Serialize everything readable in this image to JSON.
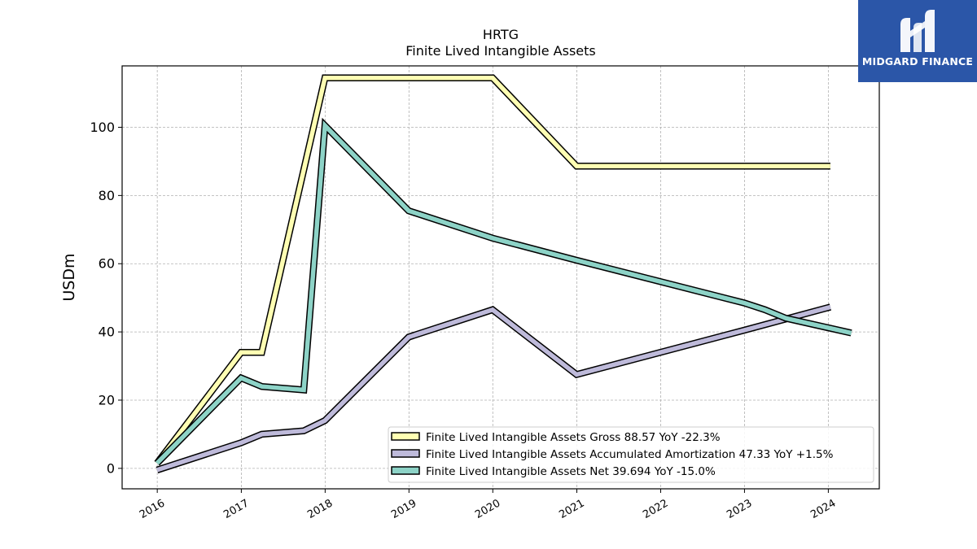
{
  "brand": {
    "name": "MIDGARD FINANCE",
    "logo_icon": "midgard-m-icon",
    "bg_color": "#2b56a8"
  },
  "chart_data": {
    "type": "line",
    "title": "HRTG",
    "subtitle": "Finite Lived Intangible Assets",
    "xlabel": "",
    "ylabel": "USDm",
    "x_ticks": [
      "2016",
      "2017",
      "2018",
      "2019",
      "2020",
      "2021",
      "2022",
      "2023",
      "2024"
    ],
    "y_ticks": [
      0,
      20,
      40,
      60,
      80,
      100
    ],
    "xlim": [
      "2015-08-01",
      "2024-08-10"
    ],
    "ylim": [
      -6,
      118
    ],
    "grid": true,
    "legend_position": "lower-right",
    "series": [
      {
        "name": "Finite Lived Intangible Assets Gross",
        "legend_label": "Finite Lived Intangible Assets Gross  88.57 YoY -22.3%",
        "color": "#ffffb3",
        "points": [
          [
            "2015-12-31",
            1.5
          ],
          [
            "2016-12-31",
            34
          ],
          [
            "2017-03-31",
            34
          ],
          [
            "2017-12-31",
            114.5
          ],
          [
            "2019-12-31",
            114.5
          ],
          [
            "2020-12-31",
            88.6
          ],
          [
            "2024-01-10",
            88.6
          ]
        ]
      },
      {
        "name": "Finite Lived Intangible Assets Accumulated Amortization",
        "legend_label": "Finite Lived Intangible Assets Accumulated Amortization  47.33 YoY +1.5%",
        "color": "#bebada",
        "points": [
          [
            "2015-12-31",
            -0.5
          ],
          [
            "2016-12-31",
            7.5
          ],
          [
            "2017-03-31",
            10
          ],
          [
            "2017-09-30",
            11
          ],
          [
            "2017-12-31",
            14
          ],
          [
            "2018-12-31",
            38.5
          ],
          [
            "2019-12-31",
            46.5
          ],
          [
            "2020-12-31",
            27.5
          ],
          [
            "2022-12-31",
            40.5
          ],
          [
            "2024-01-10",
            47.3
          ]
        ]
      },
      {
        "name": "Finite Lived Intangible Assets Net",
        "legend_label": "Finite Lived Intangible Assets Net  39.694 YoY -15.0%",
        "color": "#8dd3c7",
        "points": [
          [
            "2015-12-31",
            1.5
          ],
          [
            "2016-12-31",
            26.5
          ],
          [
            "2017-03-31",
            24
          ],
          [
            "2017-09-30",
            23
          ],
          [
            "2017-12-31",
            100.5
          ],
          [
            "2018-12-31",
            75.5
          ],
          [
            "2019-12-31",
            67.5
          ],
          [
            "2020-12-31",
            61
          ],
          [
            "2022-12-31",
            48.5
          ],
          [
            "2023-03-31",
            46.5
          ],
          [
            "2023-06-30",
            44
          ],
          [
            "2024-04-10",
            39.7
          ]
        ]
      }
    ]
  }
}
